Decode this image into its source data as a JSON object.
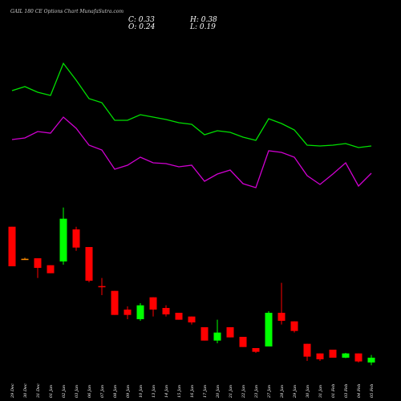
{
  "chart_data": {
    "type": "candlestick",
    "title": "GAIL 180 CE Options Chart MunafaSutra.com",
    "summary": [
      "C: 0.33",
      "H: 0.38",
      "O: 0.24",
      "L: 0.19"
    ],
    "categories": [
      "29 Dec",
      "30 Dec",
      "31 Dec",
      "01 Jan",
      "02 Jan",
      "03 Jan",
      "06 Jan",
      "07 Jan",
      "08 Jan",
      "09 Jan",
      "10 Jan",
      "13 Jan",
      "14 Jan",
      "15 Jan",
      "16 Jan",
      "17 Jan",
      "20 Jan",
      "21 Jan",
      "22 Jan",
      "23 Jan",
      "27 Jan",
      "28 Jan",
      "29 Jan",
      "30 Jan",
      "31 Jan",
      "01 Feb",
      "03 Feb",
      "04 Feb",
      "05 Feb"
    ],
    "open": [
      2.78,
      2.18,
      2.19,
      2.06,
      2.13,
      2.73,
      2.4,
      1.67,
      1.58,
      1.23,
      1.05,
      1.46,
      1.26,
      1.17,
      1.1,
      0.9,
      0.65,
      0.9,
      0.72,
      0.51,
      0.54,
      1.17,
      1.01,
      0.59,
      0.41,
      0.48,
      0.33,
      0.41,
      0.24
    ],
    "high": [
      2.78,
      2.2,
      2.19,
      2.06,
      3.14,
      2.78,
      2.4,
      1.82,
      1.58,
      1.29,
      1.35,
      1.46,
      1.31,
      1.17,
      1.1,
      0.9,
      1.04,
      0.9,
      0.72,
      0.51,
      1.2,
      1.73,
      1.01,
      0.59,
      0.41,
      0.48,
      0.42,
      0.41,
      0.38
    ],
    "low": [
      2.04,
      2.16,
      1.82,
      1.91,
      2.07,
      2.33,
      1.74,
      1.5,
      1.13,
      1.05,
      1.02,
      1.1,
      1.1,
      1.04,
      0.95,
      0.65,
      0.6,
      0.71,
      0.53,
      0.42,
      0.54,
      0.95,
      0.8,
      0.27,
      0.27,
      0.33,
      0.32,
      0.24,
      0.19
    ],
    "close": [
      2.04,
      2.18,
      2.01,
      1.91,
      2.93,
      2.39,
      1.77,
      1.66,
      1.13,
      1.13,
      1.31,
      1.23,
      1.14,
      1.04,
      0.99,
      0.65,
      0.8,
      0.71,
      0.53,
      0.44,
      1.17,
      1.02,
      0.83,
      0.35,
      0.3,
      0.33,
      0.41,
      0.26,
      0.33
    ],
    "ylim": [
      0,
      3.2
    ],
    "up_color": "#00ff00",
    "down_color": "#ff0000",
    "doji_color": "#ff8c00",
    "lines": {
      "ylim": [
        0,
        240
      ],
      "series": [
        {
          "color": "#00e000",
          "values": [
            147,
            152,
            145,
            141,
            181,
            160,
            137,
            132,
            110,
            110,
            117,
            114,
            111,
            107,
            105,
            92,
            97,
            95,
            89,
            85,
            112,
            106,
            98,
            79,
            78,
            79,
            81,
            76,
            78
          ]
        },
        {
          "color": "#d000d0",
          "values": [
            86,
            88,
            96,
            94,
            114,
            100,
            79,
            73,
            49,
            54,
            64,
            57,
            56,
            52,
            54,
            34,
            43,
            48,
            31,
            26,
            72,
            70,
            64,
            41,
            30,
            43,
            57,
            28,
            44
          ]
        }
      ]
    }
  }
}
